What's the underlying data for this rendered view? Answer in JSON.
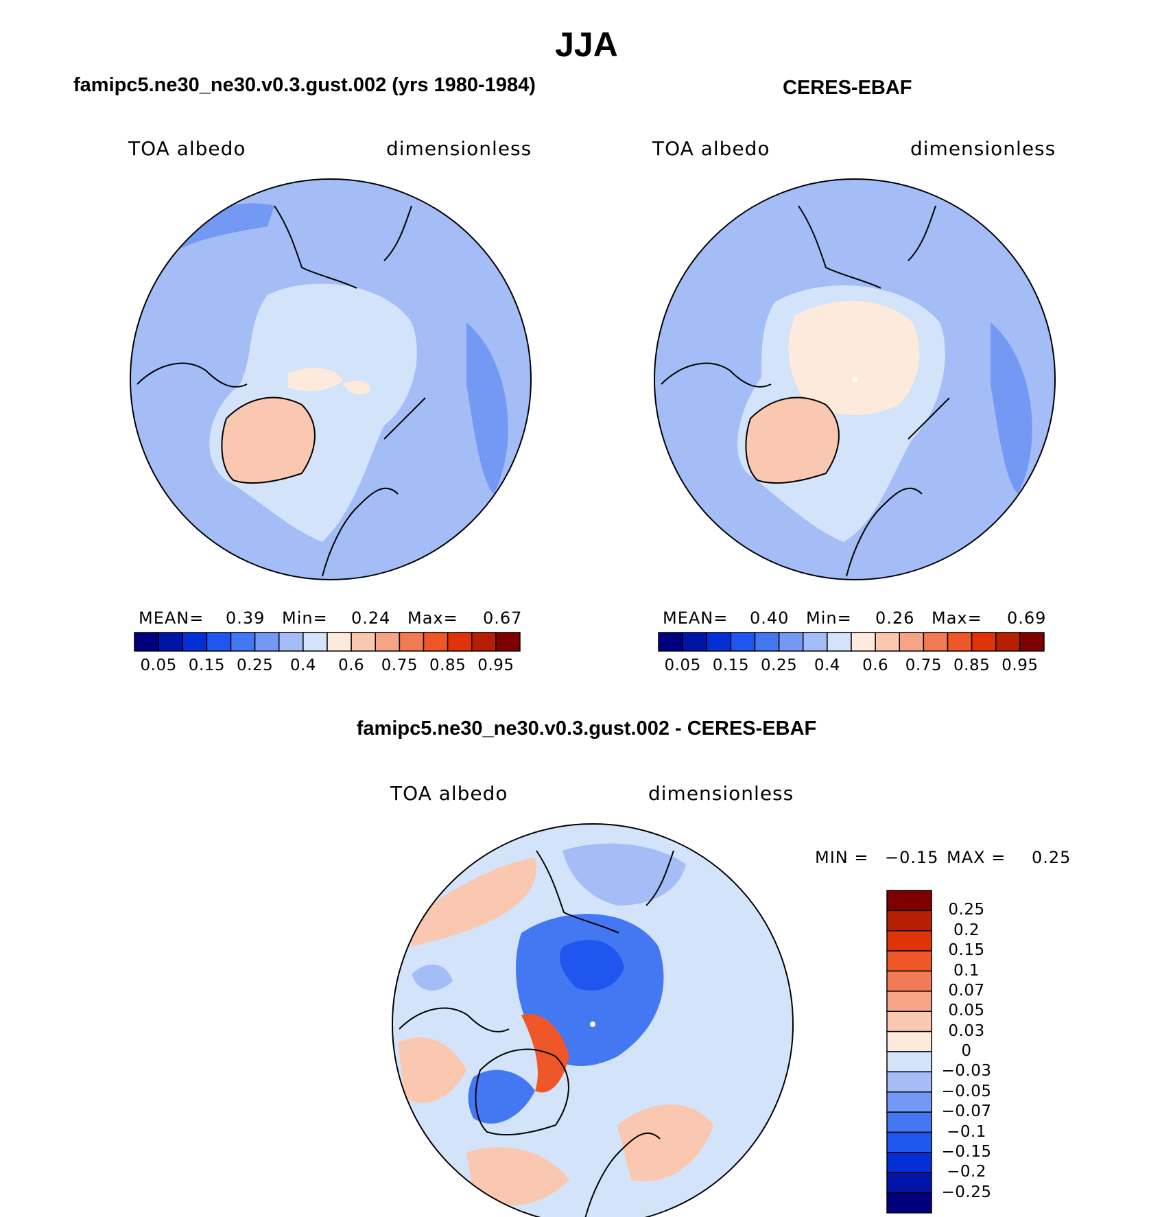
{
  "page_title": "JJA",
  "colors": {
    "abs_scale": [
      "#00007f",
      "#0015a8",
      "#0330d6",
      "#1f56f0",
      "#4478f2",
      "#7399f4",
      "#a4bdf6",
      "#d3e4fa",
      "#feeadc",
      "#fac8b0",
      "#f7a385",
      "#f27a54",
      "#ef5628",
      "#e03307",
      "#b61f03",
      "#7f0000"
    ],
    "diff_scale": [
      "#7f0000",
      "#b61f03",
      "#e03307",
      "#ef5628",
      "#f27a54",
      "#f7a385",
      "#fac8b0",
      "#feeadc",
      "#d3e4fa",
      "#a4bdf6",
      "#7399f4",
      "#4478f2",
      "#1f56f0",
      "#0330d6",
      "#0015a8",
      "#00007f"
    ],
    "coastline": "#000000"
  },
  "panels": {
    "model": {
      "title": "famipc5.ne30_ne30.v0.3.gust.002 (yrs 1980-1984)",
      "variable": "TOA albedo",
      "units": "dimensionless",
      "mean_label": "MEAN=",
      "mean_value": "0.39",
      "min_label": "Min=",
      "min_value": "0.24",
      "max_label": "Max=",
      "max_value": "0.67"
    },
    "obs": {
      "title": "CERES-EBAF",
      "variable": "TOA albedo",
      "units": "dimensionless",
      "mean_label": "MEAN=",
      "mean_value": "0.40",
      "min_label": "Min=",
      "min_value": "0.26",
      "max_label": "Max=",
      "max_value": "0.69"
    },
    "diff": {
      "title": "famipc5.ne30_ne30.v0.3.gust.002 - CERES-EBAF",
      "variable": "TOA albedo",
      "units": "dimensionless",
      "min_label": "MIN =",
      "min_value": "−0.15",
      "max_label": "MAX =",
      "max_value": "0.25"
    }
  },
  "chart_data": [
    {
      "type": "heatmap",
      "projection": "north polar stereographic",
      "title": "famipc5.ne30_ne30.v0.3.gust.002 (yrs 1980-1984)",
      "variable": "TOA albedo",
      "units": "dimensionless",
      "mean": 0.39,
      "min": 0.24,
      "max": 0.67,
      "colorbar_levels": [
        0.05,
        0.1,
        0.15,
        0.2,
        0.25,
        0.3,
        0.35,
        0.4,
        0.5,
        0.6,
        0.7,
        0.75,
        0.8,
        0.85,
        0.9,
        0.95
      ],
      "colorbar_tick_labels": [
        "0.05",
        "0.15",
        "0.25",
        "0.4",
        "0.6",
        "0.75",
        "0.85",
        "0.95"
      ]
    },
    {
      "type": "heatmap",
      "projection": "north polar stereographic",
      "title": "CERES-EBAF",
      "variable": "TOA albedo",
      "units": "dimensionless",
      "mean": 0.4,
      "min": 0.26,
      "max": 0.69,
      "colorbar_levels": [
        0.05,
        0.1,
        0.15,
        0.2,
        0.25,
        0.3,
        0.35,
        0.4,
        0.5,
        0.6,
        0.7,
        0.75,
        0.8,
        0.85,
        0.9,
        0.95
      ],
      "colorbar_tick_labels": [
        "0.05",
        "0.15",
        "0.25",
        "0.4",
        "0.6",
        "0.75",
        "0.85",
        "0.95"
      ]
    },
    {
      "type": "heatmap",
      "projection": "north polar stereographic",
      "title": "famipc5.ne30_ne30.v0.3.gust.002 - CERES-EBAF",
      "variable": "TOA albedo",
      "units": "dimensionless",
      "min": -0.15,
      "max": 0.25,
      "colorbar_levels": [
        0.25,
        0.2,
        0.15,
        0.1,
        0.07,
        0.05,
        0.03,
        0,
        -0.03,
        -0.05,
        -0.07,
        -0.1,
        -0.15,
        -0.2,
        -0.25
      ],
      "colorbar_tick_labels": [
        "0.25",
        "0.2",
        "0.15",
        "0.1",
        "0.07",
        "0.05",
        "0.03",
        "0",
        "−0.03",
        "−0.05",
        "−0.07",
        "−0.1",
        "−0.15",
        "−0.2",
        "−0.25"
      ]
    }
  ]
}
